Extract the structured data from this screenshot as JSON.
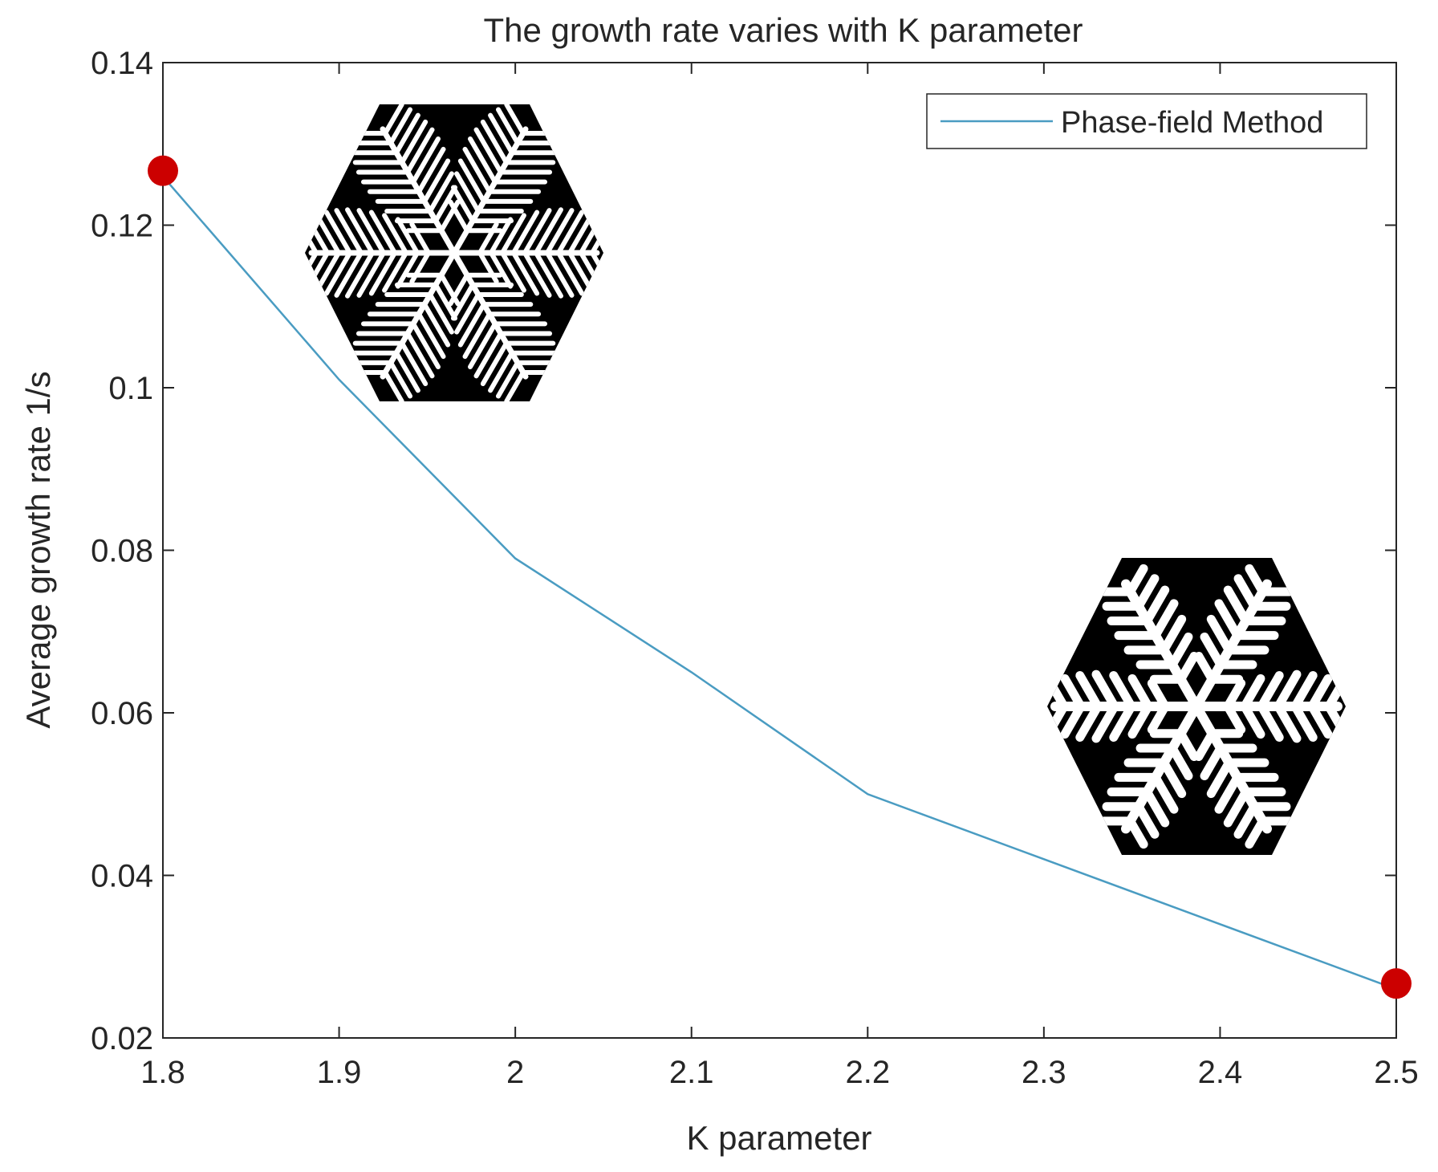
{
  "chart_data": {
    "type": "line",
    "title": "The growth rate varies with K parameter",
    "xlabel": "K parameter",
    "ylabel": "Average growth rate 1/s",
    "xlim": [
      1.8,
      2.5
    ],
    "ylim": [
      0.02,
      0.14
    ],
    "x_ticks": [
      "1.8",
      "1.9",
      "2",
      "2.1",
      "2.2",
      "2.3",
      "2.4",
      "2.5"
    ],
    "y_ticks": [
      "0.02",
      "0.04",
      "0.06",
      "0.08",
      "0.1",
      "0.12",
      "0.14"
    ],
    "grid": false,
    "legend": {
      "position": "top-right",
      "entries": [
        "Phase-field Method"
      ]
    },
    "series": [
      {
        "name": "Phase-field Method",
        "color": "#4a9cc2",
        "x": [
          1.8,
          1.9,
          2.0,
          2.1,
          2.2,
          2.3,
          2.4,
          2.5
        ],
        "y": [
          0.126,
          0.101,
          0.079,
          0.065,
          0.05,
          0.042,
          0.034,
          0.026
        ]
      }
    ],
    "highlight_points": {
      "color": "#cc0000",
      "points": [
        {
          "x": 1.8,
          "y": 0.1267
        },
        {
          "x": 2.5,
          "y": 0.0267
        }
      ]
    },
    "insets": [
      {
        "name": "dense-snowflake-image",
        "near_k": 1.95,
        "near_rate": 0.11
      },
      {
        "name": "sparse-snowflake-image",
        "near_k": 2.38,
        "near_rate": 0.055
      }
    ]
  }
}
